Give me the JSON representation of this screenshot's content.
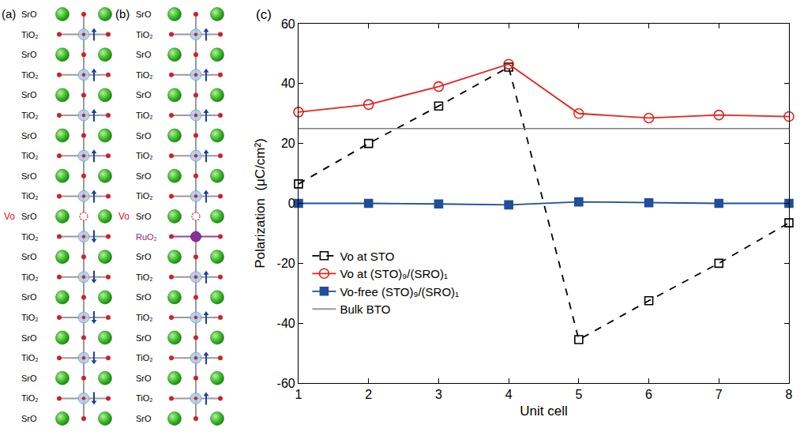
{
  "panels": [
    {
      "label": "(a)",
      "vacancy_label": "Vo",
      "layers": [
        {
          "text": "SrO"
        },
        {
          "text": "TiO₂",
          "arrow": "up"
        },
        {
          "text": "SrO"
        },
        {
          "text": "TiO₂",
          "arrow": "up"
        },
        {
          "text": "SrO"
        },
        {
          "text": "TiO₂",
          "arrow": "up"
        },
        {
          "text": "SrO"
        },
        {
          "text": "TiO₂",
          "arrow": "up"
        },
        {
          "text": "SrO"
        },
        {
          "text": "TiO₂",
          "arrow": "up"
        },
        {
          "text": "SrO",
          "vacancy": true
        },
        {
          "text": "TiO₂",
          "arrow": "down"
        },
        {
          "text": "SrO"
        },
        {
          "text": "TiO₂",
          "arrow": "down"
        },
        {
          "text": "SrO"
        },
        {
          "text": "TiO₂",
          "arrow": "down"
        },
        {
          "text": "SrO"
        },
        {
          "text": "TiO₂",
          "arrow": "down"
        },
        {
          "text": "SrO"
        },
        {
          "text": "TiO₂",
          "arrow": "down"
        },
        {
          "text": "SrO"
        }
      ]
    },
    {
      "label": "(b)",
      "vacancy_label": "Vo",
      "layers": [
        {
          "text": "SrO"
        },
        {
          "text": "TiO₂",
          "arrow": "up"
        },
        {
          "text": "SrO"
        },
        {
          "text": "TiO₂",
          "arrow": "up"
        },
        {
          "text": "SrO"
        },
        {
          "text": "TiO₂",
          "arrow": "up"
        },
        {
          "text": "SrO"
        },
        {
          "text": "TiO₂",
          "arrow": "up"
        },
        {
          "text": "SrO"
        },
        {
          "text": "TiO₂",
          "arrow": "up"
        },
        {
          "text": "SrO",
          "vacancy": true
        },
        {
          "text": "RuO₂",
          "highlight": true
        },
        {
          "text": "SrO"
        },
        {
          "text": "TiO₂",
          "arrow": "up"
        },
        {
          "text": "SrO"
        },
        {
          "text": "TiO₂",
          "arrow": "up"
        },
        {
          "text": "SrO"
        },
        {
          "text": "TiO₂",
          "arrow": "up"
        },
        {
          "text": "SrO"
        },
        {
          "text": "TiO₂",
          "arrow": "up"
        },
        {
          "text": "SrO"
        }
      ]
    }
  ],
  "chart_data": {
    "type": "line",
    "annotations": [
      "(c)"
    ],
    "xlabel": "Unit cell",
    "ylabel": "Polarization  (μC/cm²)",
    "x": [
      1,
      2,
      3,
      4,
      5,
      6,
      7,
      8
    ],
    "xlim": [
      1,
      8
    ],
    "xticks": [
      1,
      2,
      3,
      4,
      5,
      6,
      7,
      8
    ],
    "ylim": [
      -60,
      60
    ],
    "yticks": [
      -60,
      -40,
      -20,
      0,
      20,
      40,
      60
    ],
    "grid": false,
    "legend": "lower left",
    "series": [
      {
        "name": "Vo at STO",
        "color": "#000000",
        "marker": "open square",
        "line_style": "dashed",
        "values": [
          6.5,
          20,
          32.5,
          45.5,
          -45.5,
          -32.5,
          -20,
          -6.5
        ]
      },
      {
        "name": "Vo at (STO)₉/(SRO)₁",
        "color": "#e3241b",
        "marker": "open circle",
        "line_style": "solid",
        "values": [
          30.5,
          33,
          39,
          46.5,
          30,
          28.5,
          29.5,
          29
        ]
      },
      {
        "name": "Vo-free (STO)₉/(SRO)₁",
        "color": "#1f4e9c",
        "marker": "filled square",
        "line_style": "solid",
        "values": [
          0,
          0,
          -0.2,
          -0.5,
          0.5,
          0.2,
          0,
          0
        ]
      },
      {
        "name": "Bulk BTO",
        "color": "#808080",
        "marker": "none",
        "line_style": "solid",
        "values": [
          25,
          25,
          25,
          25,
          25,
          25,
          25,
          25
        ]
      }
    ]
  }
}
